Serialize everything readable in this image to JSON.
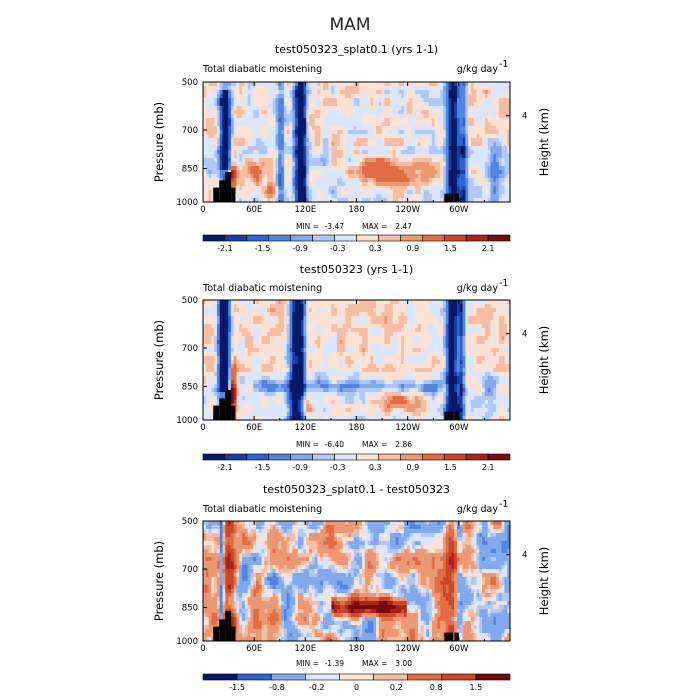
{
  "figure": {
    "title": "MAM"
  },
  "chart_data": [
    {
      "type": "heatmap",
      "title": "test050323_splat0.1 (yrs 1-1)",
      "subtitle_left": "Total diabatic moistening",
      "subtitle_right": "g/kg day",
      "subtitle_right_exp": "-1",
      "ylabel": "Pressure (mb)",
      "ylabel_right": "Height (km)",
      "x_ticks": [
        "0",
        "60E",
        "120E",
        "180",
        "120W",
        "60W"
      ],
      "y_ticks": [
        "500",
        "700",
        "850",
        "1000"
      ],
      "right_ticks": [
        "4"
      ],
      "min_label": "MIN =",
      "min_value": "-3.47",
      "max_label": "MAX =",
      "max_value": "2.47",
      "colorbar": {
        "levels": [
          "-2.1",
          "-1.5",
          "-0.9",
          "-0.3",
          "0.3",
          "0.9",
          "1.5",
          "2.1"
        ],
        "colors": [
          "#08186b",
          "#1a3fa3",
          "#2f62cf",
          "#5285e0",
          "#82a8ee",
          "#b1c8f5",
          "#dbe6fb",
          "#fbe2d5",
          "#f5bea4",
          "#ec9874",
          "#e06d46",
          "#cc4628",
          "#a8241a",
          "#760a0e"
        ]
      },
      "field": "total diabatic moistening (g/kg/day), strong negative columns near 30E, 110E, 115E, 290-300E; positive cells near 850 mb"
    },
    {
      "type": "heatmap",
      "title": "test050323 (yrs 1-1)",
      "subtitle_left": "Total diabatic moistening",
      "subtitle_right": "g/kg day",
      "subtitle_right_exp": "-1",
      "ylabel": "Pressure (mb)",
      "ylabel_right": "Height (km)",
      "x_ticks": [
        "0",
        "60E",
        "120E",
        "180",
        "120W",
        "60W"
      ],
      "y_ticks": [
        "500",
        "700",
        "850",
        "1000"
      ],
      "right_ticks": [
        "4"
      ],
      "min_label": "MIN =",
      "min_value": "-6.40",
      "max_label": "MAX =",
      "max_value": "2.86",
      "colorbar": {
        "levels": [
          "-2.1",
          "-1.5",
          "-0.9",
          "-0.3",
          "0.3",
          "0.9",
          "1.5",
          "2.1"
        ],
        "colors": [
          "#08186b",
          "#1a3fa3",
          "#2f62cf",
          "#5285e0",
          "#82a8ee",
          "#b1c8f5",
          "#dbe6fb",
          "#fbe2d5",
          "#f5bea4",
          "#ec9874",
          "#e06d46",
          "#cc4628",
          "#a8241a",
          "#760a0e"
        ]
      },
      "field": "total diabatic moistening (g/kg/day), deep negative columns near 25E, 110E, 290-300E"
    },
    {
      "type": "heatmap",
      "title": "test050323_splat0.1 - test050323",
      "subtitle_left": "Total diabatic moistening",
      "subtitle_right": "g/kg day",
      "subtitle_right_exp": "-1",
      "ylabel": "Pressure (mb)",
      "ylabel_right": "Height (km)",
      "x_ticks": [
        "0",
        "60E",
        "120E",
        "180",
        "120W",
        "60W"
      ],
      "y_ticks": [
        "500",
        "700",
        "850",
        "1000"
      ],
      "right_ticks": [
        "4"
      ],
      "min_label": "MIN =",
      "min_value": "-1.39",
      "max_label": "MAX =",
      "max_value": "3.00",
      "colorbar": {
        "levels": [
          "-1.5",
          "-0.8",
          "-0.2",
          "0",
          "0.2",
          "0.8",
          "1.5"
        ],
        "colors": [
          "#08186b",
          "#2f62cf",
          "#82a8ee",
          "#dbe6fb",
          "#fbe2d5",
          "#f5bea4",
          "#e06d46",
          "#cc4628",
          "#760a0e"
        ],
        "colors_full": [
          "#08186b",
          "#1a3fa3",
          "#2f62cf",
          "#5285e0",
          "#82a8ee",
          "#b1c8f5",
          "#dbe6fb",
          "#fbe2d5",
          "#f5bea4",
          "#ec9874",
          "#e06d46",
          "#cc4628",
          "#a8241a",
          "#760a0e"
        ]
      },
      "field": "difference field, mixed positive/negative, positive band near 850 mb 150E-240E"
    }
  ]
}
